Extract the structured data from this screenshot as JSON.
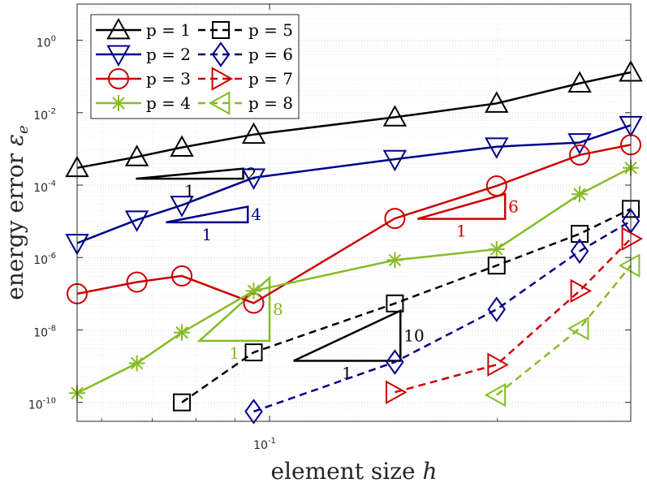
{
  "chart_data": {
    "type": "line",
    "xscale": "log",
    "yscale": "log",
    "xlim": [
      0.0557,
      0.3
    ],
    "ylim": [
      3e-11,
      10
    ],
    "grid": true,
    "minor_grid": true,
    "xlabel": "element size h",
    "xlabel_parts": {
      "text": "element size ",
      "var": "h"
    },
    "ylabel": "energy error εe",
    "ylabel_parts": {
      "text": "energy error ",
      "var": "ε",
      "sub": "e"
    },
    "xticks": [
      {
        "value": 0.1,
        "base": "10",
        "exp": "-1"
      }
    ],
    "yticks": [
      {
        "value": 1e-10,
        "base": "10",
        "exp": "-10"
      },
      {
        "value": 1e-08,
        "base": "10",
        "exp": "-8"
      },
      {
        "value": 1e-06,
        "base": "10",
        "exp": "-6"
      },
      {
        "value": 0.0001,
        "base": "10",
        "exp": "-4"
      },
      {
        "value": 0.01,
        "base": "10",
        "exp": "-2"
      },
      {
        "value": 1,
        "base": "10",
        "exp": "0"
      }
    ],
    "legend": {
      "placement": "top-left",
      "columns": 2
    },
    "series": [
      {
        "name": "p = 1",
        "color": "#000000",
        "dash": "solid",
        "marker": "triangle-up",
        "x": [
          0.0557,
          0.0668,
          0.0766,
          0.0953,
          0.1464,
          0.1995,
          0.2568,
          0.3
        ],
        "y": [
          0.0003,
          0.0006,
          0.0011,
          0.0025,
          0.0075,
          0.018,
          0.065,
          0.13
        ]
      },
      {
        "name": "p = 2",
        "color": "#00008B",
        "dash": "solid",
        "marker": "triangle-down",
        "x": [
          0.0557,
          0.0668,
          0.0766,
          0.0953,
          0.1464,
          0.1995,
          0.2568,
          0.3
        ],
        "y": [
          2.5e-06,
          1.1e-05,
          2.8e-05,
          0.00016,
          0.00052,
          0.00115,
          0.0015,
          0.0045
        ]
      },
      {
        "name": "p = 3",
        "color": "#CC0000",
        "dash": "solid",
        "marker": "circle",
        "x": [
          0.0557,
          0.0668,
          0.0766,
          0.0953,
          0.1464,
          0.1995,
          0.2568,
          0.3
        ],
        "y": [
          1e-07,
          2.1e-07,
          3.1e-07,
          5.5e-08,
          1.2e-05,
          9.5e-05,
          0.00068,
          0.0013
        ]
      },
      {
        "name": "p = 4",
        "color": "#86BC26",
        "dash": "solid",
        "marker": "asterisk",
        "x": [
          0.0557,
          0.0668,
          0.0766,
          0.0953,
          0.1464,
          0.1995,
          0.2568,
          0.3
        ],
        "y": [
          1.8e-10,
          1.2e-09,
          8.5e-09,
          1.2e-07,
          8.5e-07,
          1.7e-06,
          5.6e-05,
          0.0003
        ]
      },
      {
        "name": "p = 5",
        "color": "#000000",
        "dash": "dashed",
        "marker": "square",
        "x": [
          0.0766,
          0.0953,
          0.1464,
          0.1995,
          0.2568,
          0.3
        ],
        "y": [
          1e-10,
          2.4e-09,
          5.4e-08,
          6e-07,
          4.5e-06,
          2.2e-05
        ]
      },
      {
        "name": "p = 6",
        "color": "#00008B",
        "dash": "dashed",
        "marker": "diamond",
        "x": [
          0.0953,
          0.1464,
          0.1995,
          0.2568,
          0.3
        ],
        "y": [
          5.6e-11,
          1.3e-09,
          3.7e-08,
          1.5e-06,
          1.02e-05
        ]
      },
      {
        "name": "p = 7",
        "color": "#CC0000",
        "dash": "dashed",
        "marker": "triangle-right",
        "x": [
          0.1464,
          0.1995,
          0.2568,
          0.3
        ],
        "y": [
          1.9e-10,
          1.1e-09,
          1.2e-07,
          3.3e-06
        ]
      },
      {
        "name": "p = 8",
        "color": "#86BC26",
        "dash": "dashed",
        "marker": "triangle-left",
        "x": [
          0.1995,
          0.2568,
          0.3
        ],
        "y": [
          1.6e-10,
          1.1e-08,
          6e-07
        ]
      }
    ],
    "slope_triangles": [
      {
        "slope": 2,
        "color": "#000000",
        "base_label": "1",
        "rise_label": "2",
        "x": [
          0.0666,
          0.0923
        ],
        "y": [
          0.00015,
          0.000285
        ]
      },
      {
        "slope": 4,
        "color": "#00008B",
        "base_label": "1",
        "rise_label": "4",
        "x": [
          0.073,
          0.0936
        ],
        "y": [
          9.4e-06,
          2.54e-05
        ]
      },
      {
        "slope": 6,
        "color": "#CC0000",
        "base_label": "1",
        "rise_label": "6",
        "x": [
          0.1569,
          0.2047
        ],
        "y": [
          1.17e-05,
          5.7e-05
        ]
      },
      {
        "slope": 8,
        "color": "#86BC26",
        "base_label": "1",
        "rise_label": "8",
        "x": [
          0.0808,
          0.1
        ],
        "y": [
          5e-09,
          2.75e-07
        ]
      },
      {
        "slope": 10,
        "color": "#000000",
        "base_label": "1",
        "rise_label": "10",
        "x": [
          0.1076,
          0.1489
        ],
        "y": [
          1.4e-09,
          3.4e-08
        ]
      }
    ]
  }
}
